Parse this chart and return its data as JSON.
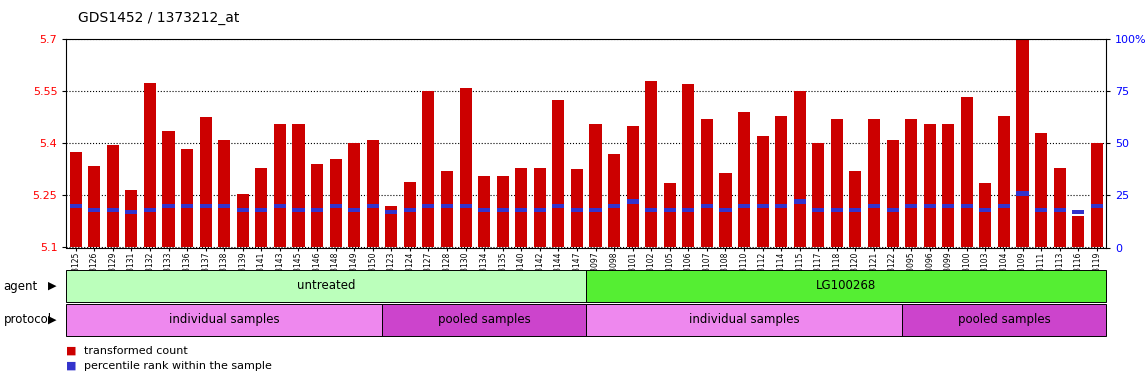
{
  "title": "GDS1452 / 1373212_at",
  "samples": [
    "GSM43125",
    "GSM43126",
    "GSM43129",
    "GSM43131",
    "GSM43132",
    "GSM43133",
    "GSM43136",
    "GSM43137",
    "GSM43138",
    "GSM43139",
    "GSM43141",
    "GSM43143",
    "GSM43145",
    "GSM43146",
    "GSM43148",
    "GSM43149",
    "GSM43150",
    "GSM43123",
    "GSM43124",
    "GSM43127",
    "GSM43128",
    "GSM43130",
    "GSM43134",
    "GSM43135",
    "GSM43140",
    "GSM43142",
    "GSM43144",
    "GSM43147",
    "GSM43097",
    "GSM43098",
    "GSM43101",
    "GSM43102",
    "GSM43105",
    "GSM43106",
    "GSM43107",
    "GSM43108",
    "GSM43110",
    "GSM43112",
    "GSM43114",
    "GSM43115",
    "GSM43117",
    "GSM43118",
    "GSM43120",
    "GSM43121",
    "GSM43122",
    "GSM43095",
    "GSM43096",
    "GSM43099",
    "GSM43100",
    "GSM43103",
    "GSM43104",
    "GSM43109",
    "GSM43111",
    "GSM43113",
    "GSM43116",
    "GSM43119"
  ],
  "bar_values": [
    5.375,
    5.335,
    5.395,
    5.265,
    5.575,
    5.435,
    5.385,
    5.475,
    5.41,
    5.255,
    5.33,
    5.455,
    5.455,
    5.34,
    5.355,
    5.4,
    5.41,
    5.22,
    5.29,
    5.55,
    5.32,
    5.56,
    5.305,
    5.305,
    5.33,
    5.33,
    5.525,
    5.325,
    5.455,
    5.37,
    5.45,
    5.58,
    5.285,
    5.57,
    5.47,
    5.315,
    5.49,
    5.42,
    5.48,
    5.55,
    5.4,
    5.47,
    5.32,
    5.47,
    5.41,
    5.47,
    5.455,
    5.455,
    5.535,
    5.285,
    5.48,
    5.72,
    5.43,
    5.33,
    5.19,
    5.4
  ],
  "percentile_values": [
    20,
    18,
    18,
    17,
    18,
    20,
    20,
    20,
    20,
    18,
    18,
    20,
    18,
    18,
    20,
    18,
    20,
    17,
    18,
    20,
    20,
    20,
    18,
    18,
    18,
    18,
    20,
    18,
    18,
    20,
    22,
    18,
    18,
    18,
    20,
    18,
    20,
    20,
    20,
    22,
    18,
    18,
    18,
    20,
    18,
    20,
    20,
    20,
    20,
    18,
    20,
    26,
    18,
    18,
    17,
    20
  ],
  "ymin": 5.1,
  "ymax": 5.7,
  "yticks": [
    5.1,
    5.25,
    5.4,
    5.55,
    5.7
  ],
  "ytick_labels": [
    "5.1",
    "5.25",
    "5.4",
    "5.55",
    "5.7"
  ],
  "right_yticks": [
    0,
    25,
    50,
    75,
    100
  ],
  "right_ytick_labels": [
    "0",
    "25",
    "50",
    "75",
    "100%"
  ],
  "bar_color": "#cc0000",
  "percentile_color": "#3333cc",
  "agent_groups": [
    {
      "label": "untreated",
      "start": 0,
      "end": 28,
      "color": "#bbffbb"
    },
    {
      "label": "LG100268",
      "start": 28,
      "end": 56,
      "color": "#55ee33"
    }
  ],
  "protocol_groups": [
    {
      "label": "individual samples",
      "start": 0,
      "end": 17,
      "color": "#ee88ee"
    },
    {
      "label": "pooled samples",
      "start": 17,
      "end": 28,
      "color": "#cc44cc"
    },
    {
      "label": "individual samples",
      "start": 28,
      "end": 45,
      "color": "#ee88ee"
    },
    {
      "label": "pooled samples",
      "start": 45,
      "end": 56,
      "color": "#cc44cc"
    }
  ],
  "legend": [
    {
      "label": "transformed count",
      "color": "#cc0000"
    },
    {
      "label": "percentile rank within the sample",
      "color": "#3333cc"
    }
  ]
}
